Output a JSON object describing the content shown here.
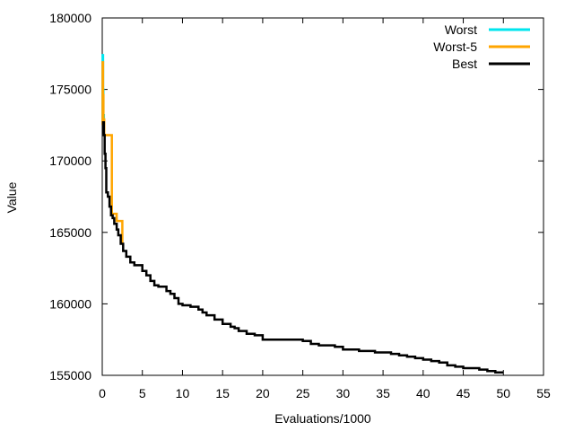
{
  "chart_data": {
    "type": "line",
    "title": "",
    "xlabel": "Evaluations/1000",
    "ylabel": "Value",
    "xlim": [
      0,
      55
    ],
    "ylim": [
      155000,
      180000
    ],
    "x_ticks": [
      0,
      5,
      10,
      15,
      20,
      25,
      30,
      35,
      40,
      45,
      50,
      55
    ],
    "y_ticks": [
      155000,
      160000,
      165000,
      170000,
      175000,
      180000
    ],
    "grid": false,
    "legend_position": "top-right",
    "series": [
      {
        "name": "Worst",
        "color": "#00e5ee",
        "x": [
          0.0,
          0.05,
          0.1,
          0.15,
          0.2
        ],
        "y": [
          172800,
          177400,
          175000,
          173200,
          172200
        ]
      },
      {
        "name": "Worst-5",
        "color": "#ffa500",
        "x": [
          0.0,
          0.05,
          0.1,
          0.15,
          0.25,
          1.2,
          1.8,
          2.5
        ],
        "y": [
          172500,
          176900,
          174600,
          172900,
          171800,
          166300,
          165800,
          164200
        ]
      },
      {
        "name": "Best",
        "color": "#000000",
        "x": [
          0.0,
          0.1,
          0.2,
          0.3,
          0.4,
          0.5,
          0.7,
          0.9,
          1.1,
          1.3,
          1.5,
          1.8,
          2.0,
          2.3,
          2.6,
          3.0,
          3.5,
          4.0,
          5.0,
          5.5,
          6.0,
          6.5,
          7.0,
          8.0,
          8.5,
          9.0,
          9.5,
          10.0,
          11.0,
          12.0,
          12.5,
          13.0,
          14.0,
          15.0,
          16.0,
          16.5,
          17.0,
          18.0,
          19.0,
          20.0,
          22.0,
          23.0,
          25.0,
          26.0,
          27.0,
          29.0,
          30.0,
          32.0,
          34.0,
          36.0,
          37.0,
          38.0,
          39.0,
          40.0,
          41.0,
          42.0,
          43.0,
          44.0,
          45.0,
          47.0,
          48.0,
          49.0,
          50.0
        ],
        "y": [
          172000,
          172700,
          171800,
          170500,
          169500,
          167800,
          167500,
          166800,
          166200,
          166000,
          165600,
          165200,
          164800,
          164200,
          163700,
          163300,
          162900,
          162700,
          162300,
          162000,
          161600,
          161300,
          161200,
          160900,
          160700,
          160400,
          160000,
          159900,
          159800,
          159600,
          159400,
          159200,
          158900,
          158600,
          158400,
          158300,
          158100,
          157900,
          157800,
          157500,
          157500,
          157500,
          157400,
          157200,
          157100,
          157000,
          156800,
          156700,
          156600,
          156500,
          156400,
          156300,
          156200,
          156100,
          156000,
          155900,
          155700,
          155600,
          155500,
          155400,
          155300,
          155200,
          155200
        ]
      }
    ]
  }
}
